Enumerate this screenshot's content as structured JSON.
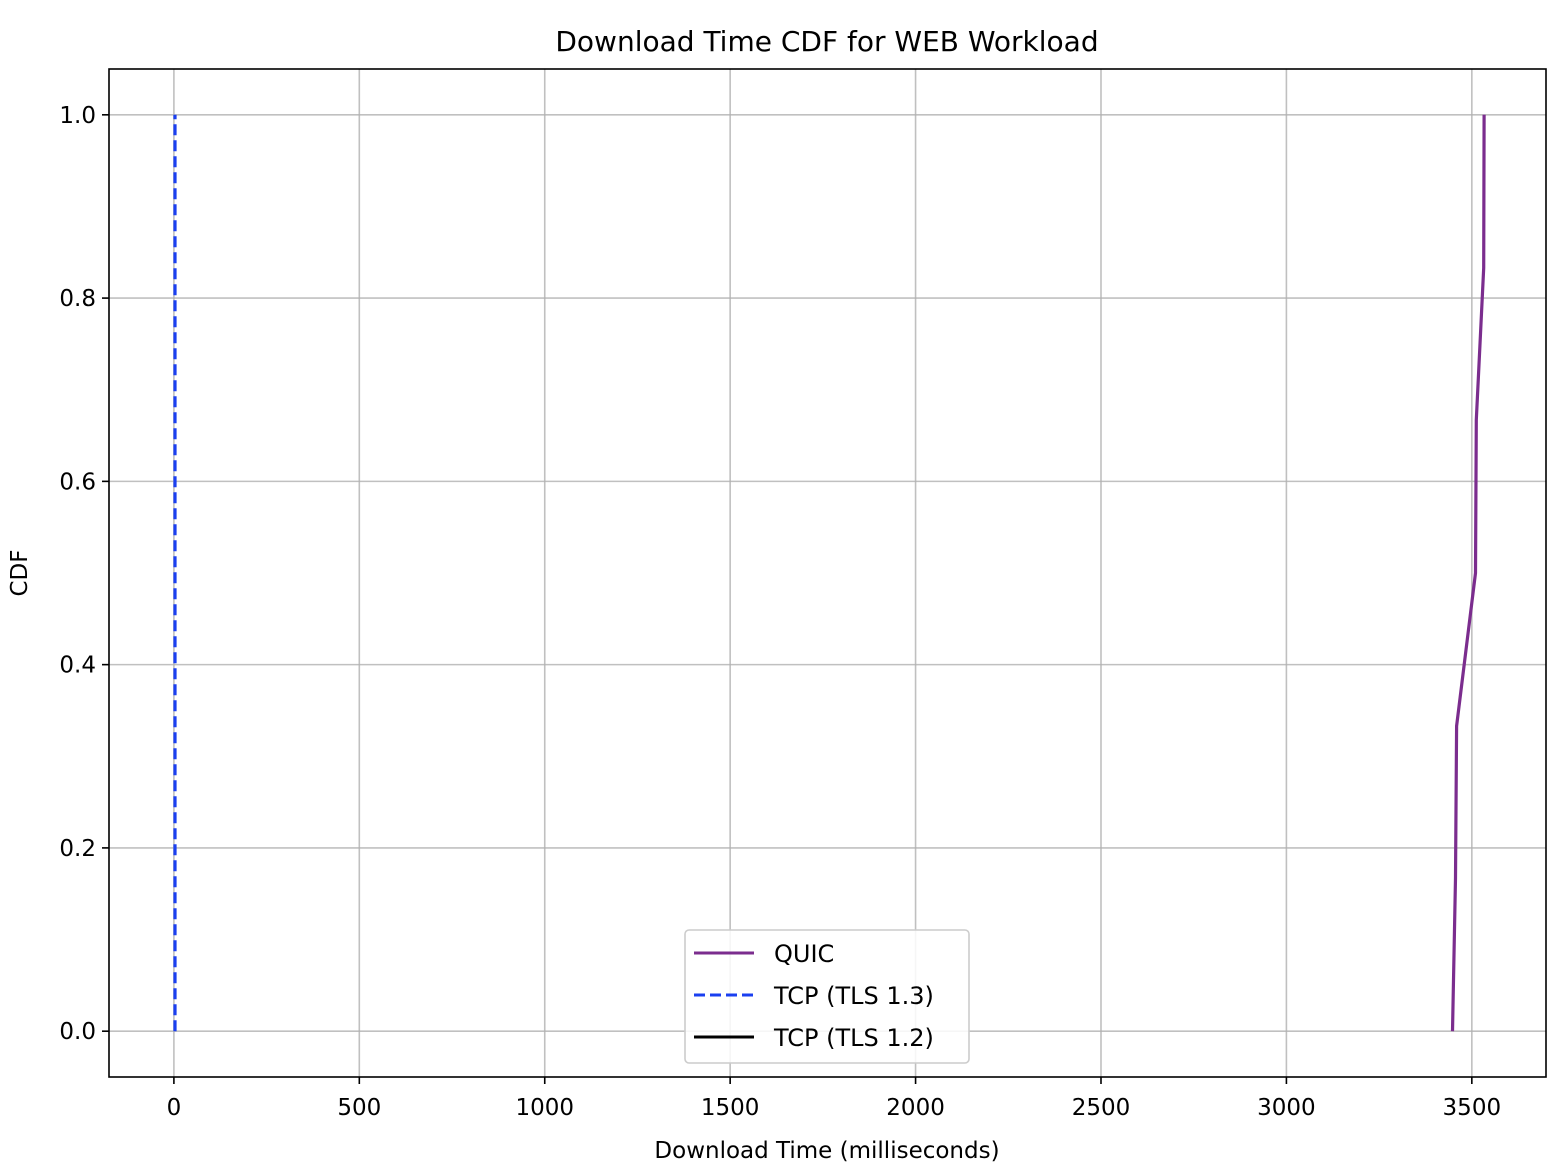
{
  "chart_data": {
    "type": "line",
    "title": "Download Time CDF for WEB Workload",
    "xlabel": "Download Time (milliseconds)",
    "ylabel": "CDF",
    "xlim": [
      -175,
      3700
    ],
    "ylim": [
      -0.05,
      1.05
    ],
    "xticks": [
      0,
      500,
      1000,
      1500,
      2000,
      2500,
      3000,
      3500
    ],
    "xtick_labels": [
      "0",
      "500",
      "1000",
      "1500",
      "2000",
      "2500",
      "3000",
      "3500"
    ],
    "yticks": [
      0.0,
      0.2,
      0.4,
      0.6,
      0.8,
      1.0
    ],
    "ytick_labels": [
      "0.0",
      "0.2",
      "0.4",
      "0.6",
      "0.8",
      "1.0"
    ],
    "grid": true,
    "legend_position": "lower center",
    "series": [
      {
        "name": "QUIC",
        "color": "#7b2d8e",
        "dash": "solid",
        "x": [
          3448,
          3456,
          3459,
          3510,
          3512,
          3532,
          3533
        ],
        "y": [
          0.0,
          0.167,
          0.333,
          0.5,
          0.667,
          0.833,
          1.0
        ]
      },
      {
        "name": "TCP (TLS 1.3)",
        "color": "#1a3ff0",
        "dash": "dashed",
        "x": [
          3,
          3,
          3,
          3,
          3,
          3,
          3
        ],
        "y": [
          0.0,
          0.167,
          0.333,
          0.5,
          0.667,
          0.833,
          1.0
        ]
      },
      {
        "name": "TCP (TLS 1.2)",
        "color": "#000000",
        "dash": "solid",
        "x": [],
        "y": []
      }
    ]
  }
}
